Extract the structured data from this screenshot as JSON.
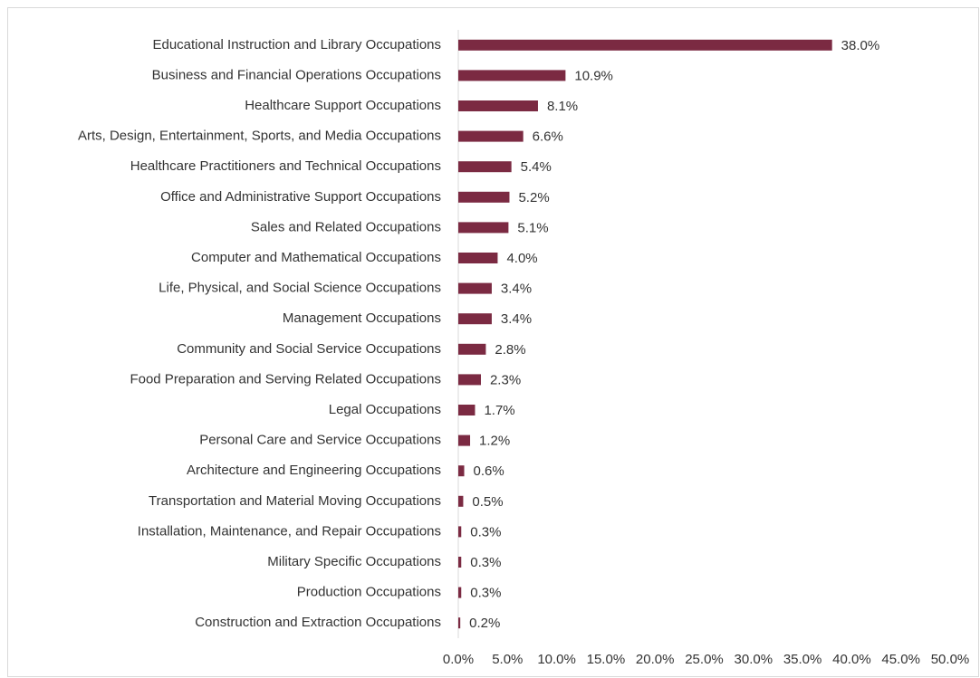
{
  "chart_data": {
    "type": "hbar",
    "categories": [
      "Educational Instruction and Library Occupations",
      "Business and Financial Operations Occupations",
      "Healthcare Support Occupations",
      "Arts, Design, Entertainment, Sports, and Media Occupations",
      "Healthcare Practitioners and Technical Occupations",
      "Office and Administrative Support Occupations",
      "Sales and Related Occupations",
      "Computer and Mathematical Occupations",
      "Life, Physical, and Social Science Occupations",
      "Management Occupations",
      "Community and Social Service Occupations",
      "Food Preparation and Serving Related Occupations",
      "Legal Occupations",
      "Personal Care and Service Occupations",
      "Architecture and Engineering Occupations",
      "Transportation and Material Moving Occupations",
      "Installation, Maintenance, and Repair Occupations",
      "Military Specific Occupations",
      "Production Occupations",
      "Construction and Extraction Occupations"
    ],
    "values": [
      38.0,
      10.9,
      8.1,
      6.6,
      5.4,
      5.2,
      5.1,
      4.0,
      3.4,
      3.4,
      2.8,
      2.3,
      1.7,
      1.2,
      0.6,
      0.5,
      0.3,
      0.3,
      0.3,
      0.2
    ],
    "value_labels": [
      "38.0%",
      "10.9%",
      "8.1%",
      "6.6%",
      "5.4%",
      "5.2%",
      "5.1%",
      "4.0%",
      "3.4%",
      "3.4%",
      "2.8%",
      "2.3%",
      "1.7%",
      "1.2%",
      "0.6%",
      "0.5%",
      "0.3%",
      "0.3%",
      "0.3%",
      "0.2%"
    ],
    "color": "#7b2a42",
    "xlim": [
      0,
      50
    ],
    "xticks": [
      {
        "value": 0,
        "label": "0.0%"
      },
      {
        "value": 5,
        "label": "5.0%"
      },
      {
        "value": 10,
        "label": "10.0%"
      },
      {
        "value": 15,
        "label": "15.0%"
      },
      {
        "value": 20,
        "label": "20.0%"
      },
      {
        "value": 25,
        "label": "25.0%"
      },
      {
        "value": 30,
        "label": "30.0%"
      },
      {
        "value": 35,
        "label": "35.0%"
      },
      {
        "value": 40,
        "label": "40.0%"
      },
      {
        "value": 45,
        "label": "45.0%"
      },
      {
        "value": 50,
        "label": "50.0%"
      }
    ]
  }
}
